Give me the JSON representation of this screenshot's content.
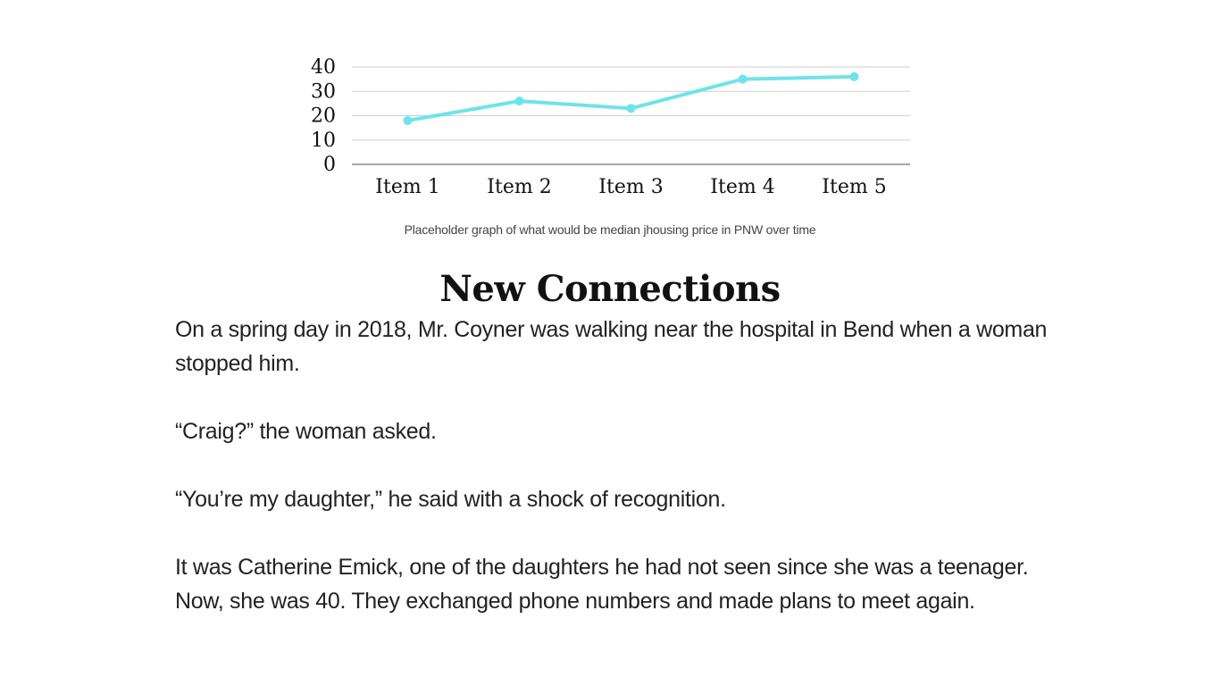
{
  "chart_data": {
    "type": "line",
    "categories": [
      "Item 1",
      "Item 2",
      "Item 3",
      "Item 4",
      "Item 5"
    ],
    "series": [
      {
        "values": [
          18,
          26,
          23,
          35,
          36
        ]
      }
    ],
    "yticks": [
      "0",
      "10",
      "20",
      "30",
      "40"
    ],
    "ylim": [
      0,
      40
    ],
    "grid": true,
    "line_color": "#6ee3ea"
  },
  "caption": "Placeholder graph of what would be median jhousing price in PNW over time",
  "section": {
    "title": "New Connections",
    "paragraphs": [
      "On a spring day in 2018, Mr. Coyner was walking near the hospital in Bend when a woman stopped him.",
      "“Craig?” the woman asked.",
      "“You’re my daughter,” he said with a shock of recognition.",
      "It was Catherine Emick, one of the daughters he had not seen since she was a teenager. Now, she was 40. They exchanged phone numbers and made plans to meet again."
    ]
  }
}
